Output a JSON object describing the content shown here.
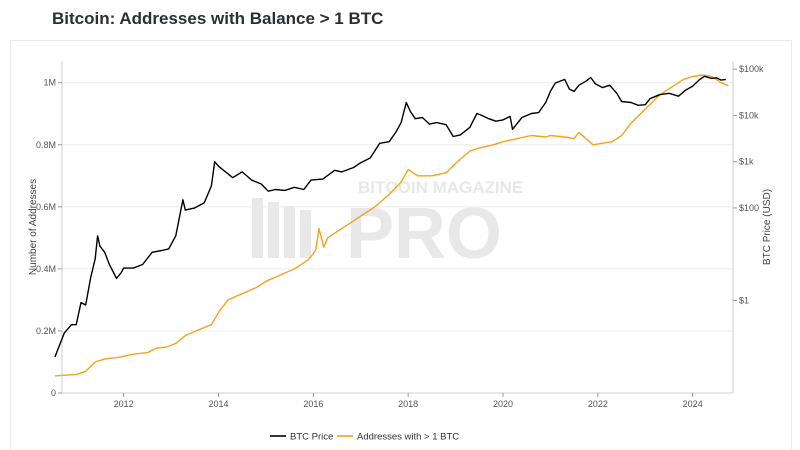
{
  "title": "Bitcoin: Addresses with Balance > 1 BTC",
  "watermark": {
    "line1": "BITCOIN MAGAZINE",
    "line2": "PRO"
  },
  "chart_data": {
    "type": "line",
    "title": "Bitcoin: Addresses with Balance > 1 BTC",
    "xlabel": "",
    "ylabel_left": "Number of Addresses",
    "ylabel_right": "BTC Price (USD)",
    "xlim": [
      2010.7,
      2024.85
    ],
    "x_ticks": [
      {
        "value": 2012,
        "label": "2012"
      },
      {
        "value": 2014,
        "label": "2014"
      },
      {
        "value": 2016,
        "label": "2016"
      },
      {
        "value": 2018,
        "label": "2018"
      },
      {
        "value": 2020,
        "label": "2020"
      },
      {
        "value": 2022,
        "label": "2022"
      },
      {
        "value": 2024,
        "label": "2024"
      }
    ],
    "y_left": {
      "scale": "linear",
      "range": [
        0,
        1070000
      ],
      "ticks": [
        {
          "value": 0,
          "label": "0"
        },
        {
          "value": 200000,
          "label": "0.2M"
        },
        {
          "value": 400000,
          "label": "0.4M"
        },
        {
          "value": 600000,
          "label": "0.6M"
        },
        {
          "value": 800000,
          "label": "0.8M"
        },
        {
          "value": 1000000,
          "label": "1M"
        }
      ]
    },
    "y_right": {
      "scale": "log",
      "range": [
        0.01,
        150000
      ],
      "ticks": [
        {
          "value": 1,
          "label": "$1"
        },
        {
          "value": 100,
          "label": "$100"
        },
        {
          "value": 1000,
          "label": "$1k"
        },
        {
          "value": 10000,
          "label": "$10k"
        },
        {
          "value": 100000,
          "label": "$100k"
        }
      ]
    },
    "grid": "horizontal",
    "legend_position": "bottom-center",
    "series": [
      {
        "name": "BTC Price",
        "axis": "right",
        "color": "#000000",
        "points": [
          [
            2010.55,
            0.06
          ],
          [
            2010.75,
            0.2
          ],
          [
            2010.9,
            0.3
          ],
          [
            2011.0,
            0.3
          ],
          [
            2011.1,
            0.9
          ],
          [
            2011.2,
            0.8
          ],
          [
            2011.3,
            3
          ],
          [
            2011.4,
            8
          ],
          [
            2011.45,
            25
          ],
          [
            2011.5,
            15
          ],
          [
            2011.6,
            11
          ],
          [
            2011.7,
            6
          ],
          [
            2011.85,
            3
          ],
          [
            2011.95,
            4
          ],
          [
            2012.0,
            5
          ],
          [
            2012.2,
            5
          ],
          [
            2012.4,
            6
          ],
          [
            2012.6,
            11
          ],
          [
            2012.8,
            12
          ],
          [
            2012.95,
            13
          ],
          [
            2013.1,
            25
          ],
          [
            2013.25,
            150
          ],
          [
            2013.3,
            90
          ],
          [
            2013.5,
            100
          ],
          [
            2013.7,
            130
          ],
          [
            2013.85,
            300
          ],
          [
            2013.92,
            1000
          ],
          [
            2014.0,
            800
          ],
          [
            2014.15,
            600
          ],
          [
            2014.3,
            450
          ],
          [
            2014.5,
            600
          ],
          [
            2014.7,
            400
          ],
          [
            2014.9,
            330
          ],
          [
            2015.05,
            230
          ],
          [
            2015.2,
            250
          ],
          [
            2015.4,
            240
          ],
          [
            2015.6,
            280
          ],
          [
            2015.8,
            250
          ],
          [
            2015.95,
            400
          ],
          [
            2016.2,
            420
          ],
          [
            2016.45,
            650
          ],
          [
            2016.6,
            600
          ],
          [
            2016.85,
            750
          ],
          [
            2017.0,
            950
          ],
          [
            2017.2,
            1200
          ],
          [
            2017.4,
            2500
          ],
          [
            2017.6,
            2700
          ],
          [
            2017.75,
            4500
          ],
          [
            2017.85,
            7000
          ],
          [
            2017.96,
            19000
          ],
          [
            2018.05,
            12000
          ],
          [
            2018.15,
            8500
          ],
          [
            2018.3,
            9000
          ],
          [
            2018.45,
            6500
          ],
          [
            2018.6,
            7000
          ],
          [
            2018.8,
            6300
          ],
          [
            2018.95,
            3500
          ],
          [
            2019.1,
            3800
          ],
          [
            2019.3,
            5500
          ],
          [
            2019.45,
            11000
          ],
          [
            2019.55,
            10000
          ],
          [
            2019.7,
            8500
          ],
          [
            2019.85,
            7500
          ],
          [
            2020.0,
            8000
          ],
          [
            2020.15,
            9500
          ],
          [
            2020.2,
            5000
          ],
          [
            2020.4,
            9000
          ],
          [
            2020.6,
            11000
          ],
          [
            2020.75,
            11500
          ],
          [
            2020.9,
            19000
          ],
          [
            2021.0,
            33000
          ],
          [
            2021.1,
            50000
          ],
          [
            2021.3,
            60000
          ],
          [
            2021.4,
            37000
          ],
          [
            2021.5,
            33000
          ],
          [
            2021.6,
            45000
          ],
          [
            2021.75,
            55000
          ],
          [
            2021.85,
            66000
          ],
          [
            2021.95,
            48000
          ],
          [
            2022.1,
            40000
          ],
          [
            2022.25,
            45000
          ],
          [
            2022.4,
            30000
          ],
          [
            2022.5,
            20000
          ],
          [
            2022.7,
            19000
          ],
          [
            2022.85,
            16500
          ],
          [
            2023.0,
            17000
          ],
          [
            2023.1,
            23000
          ],
          [
            2023.3,
            28000
          ],
          [
            2023.5,
            30000
          ],
          [
            2023.7,
            26000
          ],
          [
            2023.85,
            35000
          ],
          [
            2024.0,
            43000
          ],
          [
            2024.15,
            60000
          ],
          [
            2024.25,
            70000
          ],
          [
            2024.4,
            63000
          ],
          [
            2024.5,
            65000
          ],
          [
            2024.6,
            58000
          ],
          [
            2024.7,
            60000
          ]
        ]
      },
      {
        "name": "Addresses with > 1 BTC",
        "axis": "left",
        "color": "#f7a21b",
        "points": [
          [
            2010.55,
            55000
          ],
          [
            2011.0,
            60000
          ],
          [
            2011.2,
            70000
          ],
          [
            2011.4,
            100000
          ],
          [
            2011.6,
            110000
          ],
          [
            2011.9,
            115000
          ],
          [
            2012.2,
            125000
          ],
          [
            2012.5,
            130000
          ],
          [
            2012.7,
            145000
          ],
          [
            2012.9,
            148000
          ],
          [
            2013.1,
            160000
          ],
          [
            2013.3,
            185000
          ],
          [
            2013.6,
            205000
          ],
          [
            2013.85,
            220000
          ],
          [
            2014.0,
            260000
          ],
          [
            2014.2,
            300000
          ],
          [
            2014.5,
            320000
          ],
          [
            2014.8,
            340000
          ],
          [
            2015.0,
            360000
          ],
          [
            2015.3,
            380000
          ],
          [
            2015.6,
            400000
          ],
          [
            2015.9,
            430000
          ],
          [
            2016.05,
            460000
          ],
          [
            2016.12,
            530000
          ],
          [
            2016.22,
            470000
          ],
          [
            2016.3,
            500000
          ],
          [
            2016.5,
            520000
          ],
          [
            2016.8,
            550000
          ],
          [
            2017.0,
            570000
          ],
          [
            2017.3,
            600000
          ],
          [
            2017.6,
            640000
          ],
          [
            2017.85,
            680000
          ],
          [
            2018.0,
            720000
          ],
          [
            2018.2,
            700000
          ],
          [
            2018.5,
            700000
          ],
          [
            2018.8,
            710000
          ],
          [
            2019.0,
            740000
          ],
          [
            2019.3,
            780000
          ],
          [
            2019.5,
            790000
          ],
          [
            2019.8,
            800000
          ],
          [
            2020.0,
            810000
          ],
          [
            2020.3,
            820000
          ],
          [
            2020.6,
            830000
          ],
          [
            2020.9,
            825000
          ],
          [
            2021.0,
            830000
          ],
          [
            2021.3,
            825000
          ],
          [
            2021.5,
            820000
          ],
          [
            2021.6,
            840000
          ],
          [
            2021.9,
            800000
          ],
          [
            2022.1,
            805000
          ],
          [
            2022.3,
            810000
          ],
          [
            2022.5,
            830000
          ],
          [
            2022.7,
            870000
          ],
          [
            2022.9,
            900000
          ],
          [
            2023.1,
            930000
          ],
          [
            2023.3,
            960000
          ],
          [
            2023.6,
            990000
          ],
          [
            2023.8,
            1010000
          ],
          [
            2024.0,
            1020000
          ],
          [
            2024.2,
            1025000
          ],
          [
            2024.4,
            1020000
          ],
          [
            2024.6,
            1000000
          ],
          [
            2024.75,
            990000
          ]
        ]
      }
    ]
  }
}
